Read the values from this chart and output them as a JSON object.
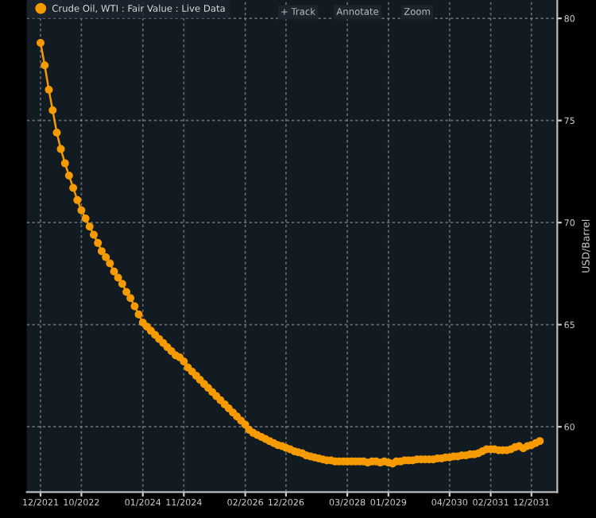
{
  "chart_data": {
    "type": "line",
    "x": [
      "2021-12",
      "2022-01",
      "2022-02",
      "2022-03",
      "2022-04",
      "2022-05",
      "2022-06",
      "2022-07",
      "2022-08",
      "2022-09",
      "2022-10",
      "2022-11",
      "2022-12",
      "2023-01",
      "2023-02",
      "2023-03",
      "2023-04",
      "2023-05",
      "2023-06",
      "2023-07",
      "2023-08",
      "2023-09",
      "2023-10",
      "2023-11",
      "2023-12",
      "2024-01",
      "2024-02",
      "2024-03",
      "2024-04",
      "2024-05",
      "2024-06",
      "2024-07",
      "2024-08",
      "2024-09",
      "2024-10",
      "2024-11",
      "2024-12",
      "2025-01",
      "2025-02",
      "2025-03",
      "2025-04",
      "2025-05",
      "2025-06",
      "2025-07",
      "2025-08",
      "2025-09",
      "2025-10",
      "2025-11",
      "2025-12",
      "2026-01",
      "2026-02",
      "2026-03",
      "2026-04",
      "2026-05",
      "2026-06",
      "2026-07",
      "2026-08",
      "2026-09",
      "2026-10",
      "2026-11",
      "2026-12",
      "2027-01",
      "2027-02",
      "2027-03",
      "2027-04",
      "2027-05",
      "2027-06",
      "2027-07",
      "2027-08",
      "2027-09",
      "2027-10",
      "2027-11",
      "2027-12",
      "2028-01",
      "2028-02",
      "2028-03",
      "2028-04",
      "2028-05",
      "2028-06",
      "2028-07",
      "2028-08",
      "2028-09",
      "2028-10",
      "2028-11",
      "2028-12",
      "2029-01",
      "2029-02",
      "2029-03",
      "2029-04",
      "2029-05",
      "2029-06",
      "2029-07",
      "2029-08",
      "2029-09",
      "2029-10",
      "2029-11",
      "2029-12",
      "2030-01",
      "2030-02",
      "2030-03",
      "2030-04",
      "2030-05",
      "2030-06",
      "2030-07",
      "2030-08",
      "2030-09",
      "2030-10",
      "2030-11",
      "2030-12",
      "2031-01",
      "2031-02",
      "2031-03",
      "2031-04",
      "2031-05",
      "2031-06",
      "2031-07",
      "2031-08",
      "2031-09",
      "2031-10",
      "2031-11",
      "2031-12",
      "2032-01",
      "2032-02"
    ],
    "series": [
      {
        "name": "Crude Oil, WTI : Fair Value : Live Data",
        "color": "#f59b00",
        "values": [
          78.8,
          77.7,
          76.5,
          75.5,
          74.4,
          73.6,
          72.9,
          72.3,
          71.7,
          71.1,
          70.6,
          70.2,
          69.8,
          69.4,
          69.0,
          68.6,
          68.3,
          68.0,
          67.6,
          67.3,
          67.0,
          66.6,
          66.3,
          65.9,
          65.5,
          65.1,
          64.9,
          64.7,
          64.5,
          64.3,
          64.1,
          63.9,
          63.7,
          63.5,
          63.4,
          63.2,
          62.9,
          62.7,
          62.5,
          62.3,
          62.1,
          61.9,
          61.7,
          61.5,
          61.3,
          61.1,
          60.9,
          60.7,
          60.5,
          60.3,
          60.1,
          59.85,
          59.7,
          59.6,
          59.5,
          59.4,
          59.3,
          59.2,
          59.1,
          59.05,
          58.97,
          58.9,
          58.8,
          58.75,
          58.7,
          58.6,
          58.55,
          58.5,
          58.45,
          58.4,
          58.35,
          58.35,
          58.3,
          58.3,
          58.3,
          58.3,
          58.3,
          58.3,
          58.3,
          58.3,
          58.25,
          58.3,
          58.3,
          58.25,
          58.3,
          58.25,
          58.2,
          58.3,
          58.3,
          58.35,
          58.35,
          58.35,
          58.4,
          58.4,
          58.4,
          58.4,
          58.4,
          58.45,
          58.45,
          58.5,
          58.5,
          58.55,
          58.55,
          58.6,
          58.6,
          58.65,
          58.65,
          58.7,
          58.8,
          58.9,
          58.9,
          58.9,
          58.85,
          58.85,
          58.85,
          58.9,
          59.0,
          59.05,
          58.95,
          59.05,
          59.1,
          59.2,
          59.3
        ]
      }
    ],
    "xlim": [
      "2021-08-21",
      "2032-06-10"
    ],
    "xticks": [
      {
        "value": "2021-12",
        "label": "12/2021"
      },
      {
        "value": "2022-10",
        "label": "10/2022"
      },
      {
        "value": "2024-01",
        "label": "01/2024"
      },
      {
        "value": "2024-11",
        "label": "11/2024"
      },
      {
        "value": "2026-02",
        "label": "02/2026"
      },
      {
        "value": "2026-12",
        "label": "12/2026"
      },
      {
        "value": "2028-03",
        "label": "03/2028"
      },
      {
        "value": "2029-01",
        "label": "01/2029"
      },
      {
        "value": "2030-04",
        "label": "04/2030"
      },
      {
        "value": "2031-02",
        "label": "02/2031"
      },
      {
        "value": "2031-12",
        "label": "12/2031"
      }
    ],
    "ylim": [
      56.8,
      80.9
    ],
    "yticks": [
      60,
      65,
      70,
      75,
      80
    ],
    "y2label": "USD/Barrel",
    "annotations": [
      "+ Track",
      "Annotate",
      "Zoom"
    ],
    "grid": true,
    "legend": "top left",
    "marker": "circle",
    "line_style": "solid"
  }
}
